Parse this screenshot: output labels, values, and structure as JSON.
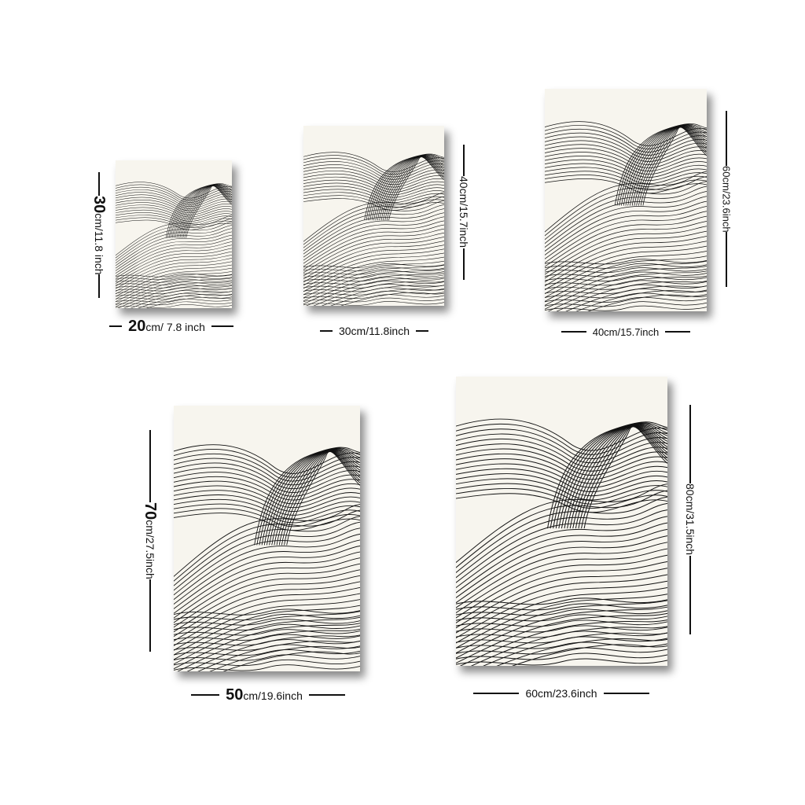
{
  "posters": [
    {
      "width_label_num": "20",
      "width_label_rest": "cm/ 7.8 inch",
      "height_label_num": "30",
      "height_label_rest": "cm/11.8 inch"
    },
    {
      "width_label": "30cm/11.8inch",
      "height_label": "40cm/15.7inch"
    },
    {
      "width_label": "40cm/15.7inch",
      "height_label": "60cm/23.6inch"
    },
    {
      "width_label_num": "50",
      "width_label_rest": "cm/19.6inch",
      "height_label_num": "70",
      "height_label_rest": "cm/27.5inch"
    },
    {
      "width_label": "60cm/23.6inch",
      "height_label": "80cm/31.5inch"
    }
  ],
  "colors": {
    "paper": "#f7f5ee",
    "line": "#111111",
    "background": "#ffffff"
  }
}
